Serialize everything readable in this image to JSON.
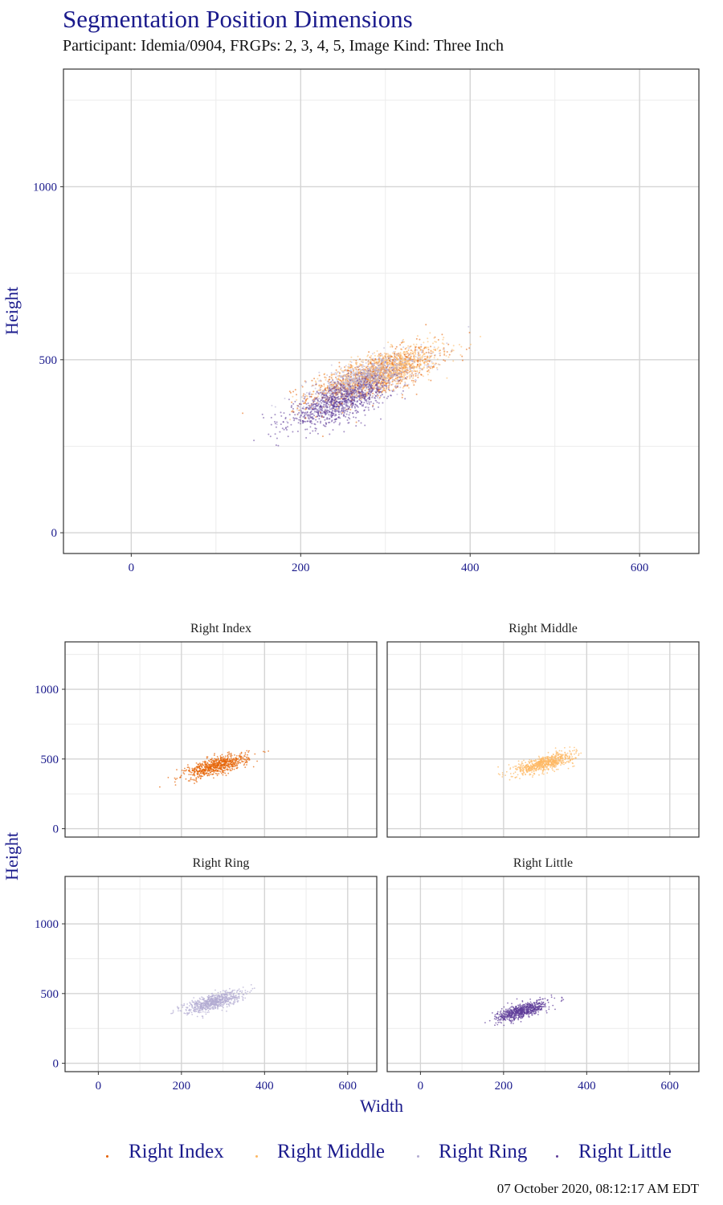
{
  "title": "Segmentation Position Dimensions",
  "subtitle": "Participant: Idemia/0904, FRGPs: 2, 3, 4, 5, Image Kind: Three Inch",
  "timestamp": "07 October 2020, 08:12:17 AM EDT",
  "colors": {
    "axis_text": "#1a1a8c",
    "grid_major": "#d4d4d4",
    "grid_minor": "#ececec",
    "panel_border": "#333333",
    "right_index": "#e66101",
    "right_middle": "#fdb863",
    "right_ring": "#b2abd2",
    "right_little": "#5e3c99"
  },
  "chart_data": [
    {
      "type": "scatter",
      "name": "combined",
      "xlabel": "",
      "ylabel": "Height",
      "xlim": [
        -80,
        670
      ],
      "ylim": [
        -60,
        1340
      ],
      "x_ticks": [
        "0",
        "200",
        "400",
        "600"
      ],
      "y_ticks": [
        "0",
        "500",
        "1000"
      ],
      "grid": true,
      "series": [
        {
          "name": "Right Index",
          "color": "#e66101",
          "center": [
            285,
            450
          ],
          "spread": [
            38,
            42
          ],
          "corr": 0.7
        },
        {
          "name": "Right Middle",
          "color": "#fdb863",
          "center": [
            300,
            470
          ],
          "spread": [
            35,
            38
          ],
          "corr": 0.7
        },
        {
          "name": "Right Ring",
          "color": "#b2abd2",
          "center": [
            275,
            440
          ],
          "spread": [
            34,
            38
          ],
          "corr": 0.7
        },
        {
          "name": "Right Little",
          "color": "#5e3c99",
          "center": [
            245,
            375
          ],
          "spread": [
            30,
            36
          ],
          "corr": 0.7
        }
      ]
    },
    {
      "type": "scatter",
      "facets": [
        {
          "label": "Right Index",
          "series": "Right Index",
          "x_range": [
            180,
            490
          ],
          "y_range": [
            240,
            640
          ]
        },
        {
          "label": "Right Middle",
          "series": "Right Middle",
          "x_range": [
            210,
            390
          ],
          "y_range": [
            330,
            610
          ]
        },
        {
          "label": "Right Ring",
          "series": "Right Ring",
          "x_range": [
            190,
            380
          ],
          "y_range": [
            300,
            600
          ]
        },
        {
          "label": "Right Little",
          "series": "Right Little",
          "x_range": [
            180,
            420
          ],
          "y_range": [
            230,
            550
          ]
        }
      ],
      "xlabel": "Width",
      "ylabel": "Height",
      "xlim": [
        -80,
        670
      ],
      "ylim": [
        -60,
        1340
      ],
      "x_ticks": [
        "0",
        "200",
        "400",
        "600"
      ],
      "y_ticks": [
        "0",
        "500",
        "1000"
      ]
    }
  ],
  "legend": {
    "items": [
      "Right Index",
      "Right Middle",
      "Right Ring",
      "Right Little"
    ]
  }
}
